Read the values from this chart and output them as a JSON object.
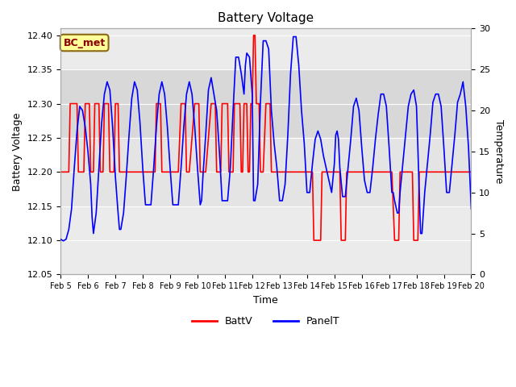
{
  "title": "Battery Voltage",
  "xlabel": "Time",
  "ylabel_left": "Battery Voltage",
  "ylabel_right": "Temperature",
  "annotation": "BC_met",
  "ylim_left": [
    12.05,
    12.41
  ],
  "ylim_right": [
    0,
    30
  ],
  "yticks_left": [
    12.05,
    12.1,
    12.15,
    12.2,
    12.25,
    12.3,
    12.35,
    12.4
  ],
  "yticks_right": [
    0,
    5,
    10,
    15,
    20,
    25,
    30
  ],
  "xticklabels": [
    "Feb 5",
    "Feb 6",
    "Feb 7",
    "Feb 8",
    "Feb 9",
    "Feb 10",
    "Feb 11",
    "Feb 12",
    "Feb 13",
    "Feb 14",
    "Feb 15",
    "Feb 16",
    "Feb 17",
    "Feb 18",
    "Feb 19",
    "Feb 20"
  ],
  "background_color": "#ffffff",
  "batt_color": "#ff0000",
  "panel_color": "#0000ff",
  "legend_batt": "BattV",
  "legend_panel": "PanelT",
  "batt_data": [
    [
      5.0,
      12.2
    ],
    [
      5.3,
      12.2
    ],
    [
      5.35,
      12.3
    ],
    [
      5.6,
      12.3
    ],
    [
      5.65,
      12.2
    ],
    [
      5.85,
      12.2
    ],
    [
      5.9,
      12.3
    ],
    [
      6.05,
      12.3
    ],
    [
      6.1,
      12.2
    ],
    [
      6.2,
      12.2
    ],
    [
      6.25,
      12.3
    ],
    [
      6.4,
      12.3
    ],
    [
      6.45,
      12.2
    ],
    [
      6.55,
      12.2
    ],
    [
      6.6,
      12.3
    ],
    [
      6.75,
      12.3
    ],
    [
      6.8,
      12.2
    ],
    [
      6.95,
      12.2
    ],
    [
      7.0,
      12.3
    ],
    [
      7.1,
      12.3
    ],
    [
      7.15,
      12.2
    ],
    [
      7.3,
      12.2
    ],
    [
      8.3,
      12.2
    ],
    [
      8.45,
      12.2
    ],
    [
      8.5,
      12.3
    ],
    [
      8.65,
      12.3
    ],
    [
      8.7,
      12.2
    ],
    [
      8.9,
      12.2
    ],
    [
      9.3,
      12.2
    ],
    [
      9.4,
      12.3
    ],
    [
      9.55,
      12.3
    ],
    [
      9.6,
      12.2
    ],
    [
      9.7,
      12.2
    ],
    [
      9.9,
      12.3
    ],
    [
      10.05,
      12.3
    ],
    [
      10.1,
      12.2
    ],
    [
      10.3,
      12.2
    ],
    [
      10.5,
      12.3
    ],
    [
      10.65,
      12.3
    ],
    [
      10.7,
      12.2
    ],
    [
      10.85,
      12.2
    ],
    [
      10.9,
      12.3
    ],
    [
      11.1,
      12.3
    ],
    [
      11.15,
      12.2
    ],
    [
      11.3,
      12.2
    ],
    [
      11.35,
      12.3
    ],
    [
      11.55,
      12.3
    ],
    [
      11.6,
      12.2
    ],
    [
      11.65,
      12.2
    ],
    [
      11.7,
      12.3
    ],
    [
      11.8,
      12.3
    ],
    [
      11.85,
      12.2
    ],
    [
      11.9,
      12.2
    ],
    [
      11.95,
      12.3
    ],
    [
      12.0,
      12.3
    ],
    [
      12.05,
      12.4
    ],
    [
      12.1,
      12.4
    ],
    [
      12.15,
      12.3
    ],
    [
      12.25,
      12.3
    ],
    [
      12.3,
      12.2
    ],
    [
      12.4,
      12.2
    ],
    [
      12.5,
      12.3
    ],
    [
      12.65,
      12.3
    ],
    [
      12.7,
      12.2
    ],
    [
      13.9,
      12.2
    ],
    [
      14.0,
      12.2
    ],
    [
      14.2,
      12.2
    ],
    [
      14.25,
      12.1
    ],
    [
      14.5,
      12.1
    ],
    [
      14.55,
      12.2
    ],
    [
      15.1,
      12.2
    ],
    [
      15.2,
      12.2
    ],
    [
      15.25,
      12.1
    ],
    [
      15.4,
      12.1
    ],
    [
      15.45,
      12.2
    ],
    [
      15.55,
      12.2
    ],
    [
      15.6,
      12.2
    ],
    [
      16.05,
      12.2
    ],
    [
      16.3,
      12.2
    ],
    [
      16.85,
      12.2
    ],
    [
      16.9,
      12.2
    ],
    [
      17.1,
      12.2
    ],
    [
      17.2,
      12.1
    ],
    [
      17.35,
      12.1
    ],
    [
      17.4,
      12.2
    ],
    [
      17.55,
      12.2
    ],
    [
      17.6,
      12.2
    ],
    [
      17.85,
      12.2
    ],
    [
      17.9,
      12.1
    ],
    [
      18.05,
      12.1
    ],
    [
      18.1,
      12.2
    ],
    [
      18.35,
      12.2
    ],
    [
      18.4,
      12.2
    ],
    [
      18.7,
      12.2
    ],
    [
      18.75,
      12.2
    ],
    [
      19.0,
      12.2
    ],
    [
      20.0,
      12.2
    ]
  ],
  "panel_data_temp": [
    [
      5.0,
      4.3
    ],
    [
      5.1,
      4.1
    ],
    [
      5.2,
      4.3
    ],
    [
      5.3,
      5.5
    ],
    [
      5.4,
      8.0
    ],
    [
      5.5,
      13.0
    ],
    [
      5.6,
      17.5
    ],
    [
      5.7,
      20.5
    ],
    [
      5.8,
      20.0
    ],
    [
      5.9,
      18.0
    ],
    [
      6.0,
      15.0
    ],
    [
      6.1,
      11.0
    ],
    [
      6.15,
      7.0
    ],
    [
      6.2,
      5.0
    ],
    [
      6.3,
      7.5
    ],
    [
      6.4,
      13.0
    ],
    [
      6.5,
      18.5
    ],
    [
      6.6,
      22.0
    ],
    [
      6.7,
      23.5
    ],
    [
      6.8,
      22.5
    ],
    [
      6.9,
      18.0
    ],
    [
      7.0,
      12.0
    ],
    [
      7.1,
      7.5
    ],
    [
      7.15,
      5.5
    ],
    [
      7.2,
      5.5
    ],
    [
      7.3,
      7.5
    ],
    [
      7.4,
      12.0
    ],
    [
      7.5,
      17.0
    ],
    [
      7.6,
      21.5
    ],
    [
      7.7,
      23.5
    ],
    [
      7.8,
      22.5
    ],
    [
      7.9,
      18.5
    ],
    [
      8.0,
      13.0
    ],
    [
      8.1,
      8.5
    ],
    [
      8.2,
      8.5
    ],
    [
      8.3,
      8.5
    ],
    [
      8.4,
      13.0
    ],
    [
      8.5,
      18.0
    ],
    [
      8.6,
      22.0
    ],
    [
      8.7,
      23.5
    ],
    [
      8.8,
      22.0
    ],
    [
      8.9,
      18.0
    ],
    [
      9.0,
      13.0
    ],
    [
      9.1,
      8.5
    ],
    [
      9.2,
      8.5
    ],
    [
      9.3,
      8.5
    ],
    [
      9.4,
      13.0
    ],
    [
      9.5,
      18.0
    ],
    [
      9.6,
      22.0
    ],
    [
      9.7,
      23.5
    ],
    [
      9.8,
      22.0
    ],
    [
      9.9,
      18.0
    ],
    [
      10.0,
      13.0
    ],
    [
      10.1,
      8.5
    ],
    [
      10.15,
      9.0
    ],
    [
      10.2,
      12.0
    ],
    [
      10.3,
      17.0
    ],
    [
      10.4,
      22.5
    ],
    [
      10.5,
      24.0
    ],
    [
      10.6,
      22.0
    ],
    [
      10.7,
      20.0
    ],
    [
      10.8,
      15.0
    ],
    [
      10.9,
      9.0
    ],
    [
      11.0,
      9.0
    ],
    [
      11.1,
      9.0
    ],
    [
      11.2,
      13.0
    ],
    [
      11.3,
      20.0
    ],
    [
      11.4,
      26.5
    ],
    [
      11.5,
      26.5
    ],
    [
      11.6,
      24.5
    ],
    [
      11.7,
      22.0
    ],
    [
      11.75,
      25.5
    ],
    [
      11.8,
      27.0
    ],
    [
      11.9,
      26.5
    ],
    [
      12.0,
      22.0
    ],
    [
      12.05,
      9.0
    ],
    [
      12.1,
      9.0
    ],
    [
      12.2,
      11.0
    ],
    [
      12.3,
      21.0
    ],
    [
      12.4,
      28.5
    ],
    [
      12.5,
      28.5
    ],
    [
      12.6,
      27.5
    ],
    [
      12.7,
      20.0
    ],
    [
      12.8,
      16.0
    ],
    [
      12.9,
      13.0
    ],
    [
      13.0,
      9.0
    ],
    [
      13.1,
      9.0
    ],
    [
      13.2,
      11.0
    ],
    [
      13.3,
      17.0
    ],
    [
      13.4,
      24.5
    ],
    [
      13.5,
      29.0
    ],
    [
      13.6,
      29.0
    ],
    [
      13.7,
      25.5
    ],
    [
      13.8,
      20.0
    ],
    [
      13.9,
      16.0
    ],
    [
      14.0,
      10.0
    ],
    [
      14.1,
      10.0
    ],
    [
      14.2,
      13.5
    ],
    [
      14.3,
      16.5
    ],
    [
      14.4,
      17.5
    ],
    [
      14.5,
      16.5
    ],
    [
      14.6,
      14.5
    ],
    [
      14.7,
      13.0
    ],
    [
      14.8,
      11.5
    ],
    [
      14.9,
      10.0
    ],
    [
      15.0,
      13.5
    ],
    [
      15.05,
      17.0
    ],
    [
      15.1,
      17.5
    ],
    [
      15.15,
      16.5
    ],
    [
      15.2,
      13.0
    ],
    [
      15.3,
      9.5
    ],
    [
      15.4,
      9.5
    ],
    [
      15.5,
      13.0
    ],
    [
      15.6,
      16.5
    ],
    [
      15.7,
      20.5
    ],
    [
      15.8,
      21.5
    ],
    [
      15.9,
      20.0
    ],
    [
      16.0,
      15.5
    ],
    [
      16.1,
      11.5
    ],
    [
      16.2,
      10.0
    ],
    [
      16.3,
      10.0
    ],
    [
      16.4,
      13.0
    ],
    [
      16.5,
      16.5
    ],
    [
      16.6,
      19.5
    ],
    [
      16.7,
      22.0
    ],
    [
      16.8,
      22.0
    ],
    [
      16.9,
      20.5
    ],
    [
      17.0,
      15.5
    ],
    [
      17.1,
      10.0
    ],
    [
      17.15,
      10.0
    ],
    [
      17.2,
      9.0
    ],
    [
      17.3,
      7.5
    ],
    [
      17.35,
      7.5
    ],
    [
      17.4,
      10.0
    ],
    [
      17.5,
      13.5
    ],
    [
      17.6,
      17.0
    ],
    [
      17.7,
      20.5
    ],
    [
      17.8,
      22.0
    ],
    [
      17.9,
      22.5
    ],
    [
      18.0,
      20.5
    ],
    [
      18.05,
      15.5
    ],
    [
      18.1,
      10.0
    ],
    [
      18.15,
      5.0
    ],
    [
      18.2,
      5.0
    ],
    [
      18.3,
      10.0
    ],
    [
      18.4,
      13.5
    ],
    [
      18.5,
      17.0
    ],
    [
      18.6,
      21.0
    ],
    [
      18.7,
      22.0
    ],
    [
      18.8,
      22.0
    ],
    [
      18.9,
      20.5
    ],
    [
      19.0,
      15.5
    ],
    [
      19.1,
      10.0
    ],
    [
      19.2,
      10.0
    ],
    [
      19.3,
      13.5
    ],
    [
      19.4,
      17.0
    ],
    [
      19.5,
      21.0
    ],
    [
      19.6,
      22.0
    ],
    [
      19.7,
      23.5
    ],
    [
      19.8,
      20.5
    ],
    [
      19.9,
      15.5
    ],
    [
      20.0,
      8.0
    ]
  ]
}
